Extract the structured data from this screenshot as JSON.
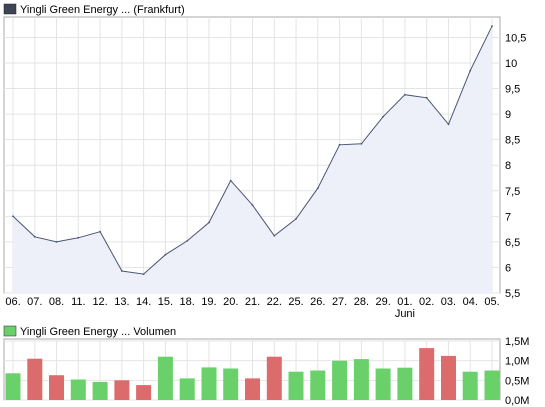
{
  "chart_data": [
    {
      "type": "area",
      "legend": "Yingli Green Energy ... (Frankfurt)",
      "categories": [
        "06.",
        "07.",
        "08.",
        "11.",
        "12.",
        "13.",
        "14.",
        "15.",
        "18.",
        "19.",
        "20.",
        "21.",
        "22.",
        "25.",
        "26.",
        "27.",
        "28.",
        "29.",
        "01.",
        "02.",
        "03.",
        "04.",
        "05."
      ],
      "month_label": "Juni",
      "month_label_under": "01.",
      "values": [
        7.0,
        6.6,
        6.5,
        6.58,
        6.7,
        5.93,
        5.87,
        6.25,
        6.52,
        6.88,
        7.7,
        7.22,
        6.62,
        6.95,
        7.55,
        8.4,
        8.42,
        8.95,
        9.38,
        9.32,
        8.8,
        9.85,
        10.72
      ],
      "yticks": [
        "5,5",
        "6",
        "6,5",
        "7",
        "7,5",
        "8",
        "8,5",
        "9",
        "9,5",
        "10",
        "10,5"
      ],
      "ylim": [
        5.5,
        10.9
      ],
      "line_color": "#4a5474",
      "fill_color": "#eef0f9"
    },
    {
      "type": "bar",
      "legend": "Yingli Green Energy ... Volumen",
      "values": [
        0.68,
        1.05,
        0.63,
        0.52,
        0.46,
        0.5,
        0.38,
        1.1,
        0.55,
        0.83,
        0.8,
        0.55,
        1.1,
        0.72,
        0.75,
        1.0,
        1.04,
        0.8,
        0.82,
        1.32,
        1.12,
        0.72,
        0.75
      ],
      "bar_colors": [
        "up",
        "down",
        "down",
        "up",
        "up",
        "down",
        "down",
        "up",
        "up",
        "up",
        "up",
        "down",
        "down",
        "up",
        "up",
        "up",
        "up",
        "up",
        "up",
        "down",
        "down",
        "up",
        "up"
      ],
      "yticks": [
        "0,0M",
        "0,5M",
        "1,0M",
        "1,5M"
      ],
      "ylim": [
        0,
        1.5
      ],
      "up_color": "#6ad06a",
      "down_color": "#dc6c6c"
    }
  ]
}
